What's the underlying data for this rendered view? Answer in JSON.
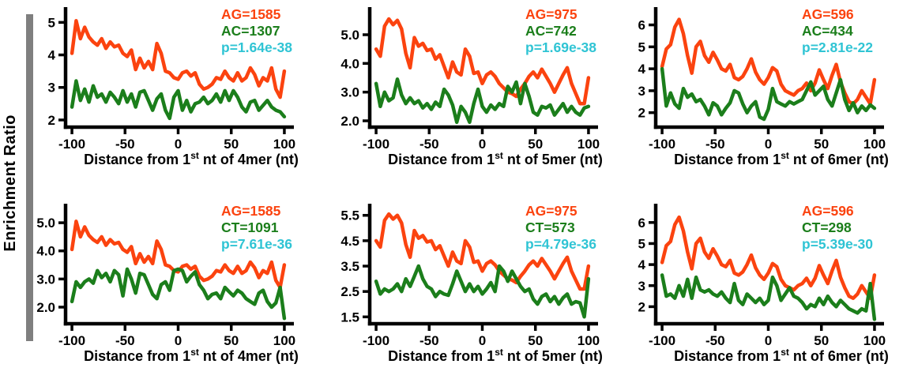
{
  "page": {
    "ylabel": "Enrichment Ratio",
    "background": "#ffffff"
  },
  "colors": {
    "ag_line": "#fb430f",
    "pair_line": "#1b7e1b",
    "pvalue_text": "#2fc4d4",
    "axis": "#000000",
    "side_bar": "#7f7f7f"
  },
  "chart_data": [
    {
      "type": "line",
      "xlabel": {
        "prefix": "Distance from 1",
        "sup": "st",
        "suffix": " nt of 4mer (nt)"
      },
      "xlim": [
        -106,
        106
      ],
      "ylim": [
        1.78,
        5.3
      ],
      "xticks": [
        -100,
        -50,
        0,
        50,
        100
      ],
      "yticks": [
        2,
        3,
        4,
        5
      ],
      "ytick_labels": [
        "2",
        "3",
        "4",
        "5"
      ],
      "legend": [
        {
          "text": "AG=1585",
          "color": "#fb430f"
        },
        {
          "text": "AC=1307",
          "color": "#1b7e1b"
        },
        {
          "text": "p=1.64e-38",
          "color": "#2fc4d4"
        }
      ],
      "x_start": -100,
      "x_step": 4,
      "series": [
        {
          "name": "AG",
          "color": "#fb430f",
          "values": [
            4.05,
            5.05,
            4.5,
            4.85,
            4.55,
            4.4,
            4.3,
            4.5,
            4.2,
            4.4,
            4.25,
            4.3,
            4.05,
            3.95,
            4.15,
            3.55,
            3.9,
            3.6,
            3.8,
            3.55,
            4.35,
            4.05,
            3.5,
            3.45,
            3.3,
            3.25,
            3.45,
            3.5,
            3.35,
            3.45,
            3.1,
            2.95,
            3.0,
            3.1,
            3.3,
            3.25,
            3.5,
            3.3,
            3.2,
            3.45,
            3.2,
            3.3,
            3.6,
            3.4,
            3.05,
            3.3,
            3.2,
            3.6,
            2.95,
            2.7,
            3.5
          ]
        },
        {
          "name": "AC",
          "color": "#1b7e1b",
          "values": [
            2.4,
            3.2,
            2.6,
            2.95,
            2.55,
            3.05,
            2.7,
            2.8,
            2.55,
            2.85,
            2.7,
            2.5,
            2.9,
            2.55,
            2.8,
            2.4,
            2.85,
            2.9,
            2.6,
            2.3,
            2.65,
            2.8,
            2.3,
            2.05,
            2.7,
            2.9,
            2.3,
            2.6,
            2.25,
            2.5,
            2.55,
            2.7,
            2.5,
            2.6,
            2.8,
            2.55,
            2.9,
            2.6,
            2.9,
            2.7,
            2.4,
            2.25,
            2.55,
            2.6,
            2.3,
            2.45,
            2.6,
            2.4,
            2.3,
            2.25,
            2.1
          ]
        }
      ]
    },
    {
      "type": "line",
      "xlabel": {
        "prefix": "Distance from 1",
        "sup": "st",
        "suffix": " nt of 5mer (nt)"
      },
      "xlim": [
        -106,
        106
      ],
      "ylim": [
        1.78,
        5.77
      ],
      "xticks": [
        -100,
        -50,
        0,
        50,
        100
      ],
      "yticks": [
        2,
        3,
        4,
        5
      ],
      "ytick_labels": [
        "2.0",
        "3.0",
        "4.0",
        "5.0"
      ],
      "legend": [
        {
          "text": "AG=975",
          "color": "#fb430f"
        },
        {
          "text": "AC=742",
          "color": "#1b7e1b"
        },
        {
          "text": "p=1.69e-38",
          "color": "#2fc4d4"
        }
      ],
      "x_start": -100,
      "x_step": 4,
      "series": [
        {
          "name": "AG",
          "color": "#fb430f",
          "values": [
            4.5,
            4.25,
            5.3,
            5.55,
            5.35,
            5.5,
            5.2,
            4.35,
            3.85,
            4.9,
            4.6,
            4.7,
            4.45,
            4.5,
            4.15,
            4.3,
            3.9,
            3.5,
            4.05,
            3.7,
            3.6,
            4.5,
            4.25,
            3.65,
            3.7,
            3.3,
            3.6,
            3.7,
            3.55,
            3.3,
            3.15,
            3.0,
            2.95,
            2.85,
            3.1,
            3.3,
            3.55,
            3.7,
            3.5,
            3.8,
            3.55,
            3.3,
            3.0,
            3.3,
            3.6,
            3.85,
            3.3,
            2.95,
            2.6,
            2.6,
            3.5
          ]
        },
        {
          "name": "AC",
          "color": "#1b7e1b",
          "values": [
            3.3,
            2.5,
            3.0,
            2.7,
            2.8,
            3.45,
            2.9,
            2.6,
            2.8,
            2.6,
            2.7,
            2.45,
            2.6,
            2.4,
            2.65,
            2.5,
            3.1,
            2.9,
            2.55,
            1.95,
            2.5,
            2.3,
            1.95,
            2.6,
            3.1,
            2.5,
            2.3,
            2.55,
            2.4,
            2.6,
            2.5,
            3.2,
            3.0,
            3.35,
            2.6,
            3.3,
            2.85,
            2.3,
            2.2,
            2.5,
            2.45,
            2.55,
            2.2,
            2.4,
            2.6,
            2.3,
            2.5,
            2.3,
            2.2,
            2.45,
            2.5
          ]
        }
      ]
    },
    {
      "type": "line",
      "xlabel": {
        "prefix": "Distance from 1",
        "sup": "st",
        "suffix": " nt of 6mer (nt)"
      },
      "xlim": [
        -106,
        106
      ],
      "ylim": [
        1.34,
        6.56
      ],
      "xticks": [
        -100,
        -50,
        0,
        50,
        100
      ],
      "yticks": [
        2,
        3,
        4,
        5,
        6
      ],
      "ytick_labels": [
        "2",
        "3",
        "4",
        "5",
        "6"
      ],
      "legend": [
        {
          "text": "AG=596",
          "color": "#fb430f"
        },
        {
          "text": "AC=434",
          "color": "#1b7e1b"
        },
        {
          "text": "p=2.81e-22",
          "color": "#2fc4d4"
        }
      ],
      "x_start": -100,
      "x_step": 4,
      "series": [
        {
          "name": "AG",
          "color": "#fb430f",
          "values": [
            4.1,
            4.9,
            5.1,
            5.9,
            6.25,
            5.6,
            4.6,
            3.8,
            5.0,
            5.25,
            4.6,
            4.3,
            4.75,
            4.4,
            4.0,
            3.9,
            4.2,
            3.6,
            3.5,
            3.65,
            4.0,
            4.45,
            3.85,
            3.5,
            3.3,
            3.6,
            4.05,
            3.9,
            3.3,
            3.0,
            2.9,
            2.8,
            3.0,
            3.1,
            3.35,
            3.0,
            3.35,
            3.95,
            3.5,
            3.1,
            3.7,
            4.2,
            3.4,
            2.9,
            2.5,
            2.4,
            2.6,
            3.0,
            2.7,
            2.4,
            3.5
          ]
        },
        {
          "name": "AC",
          "color": "#1b7e1b",
          "values": [
            4.0,
            2.3,
            2.9,
            2.4,
            2.2,
            3.1,
            2.7,
            2.85,
            2.5,
            2.6,
            2.3,
            1.9,
            2.45,
            2.3,
            1.9,
            2.2,
            2.45,
            3.0,
            2.9,
            2.4,
            2.0,
            2.3,
            2.5,
            1.8,
            1.7,
            2.15,
            3.1,
            2.5,
            2.4,
            2.3,
            2.5,
            2.4,
            2.5,
            2.6,
            3.0,
            3.4,
            2.8,
            3.0,
            3.2,
            2.6,
            2.3,
            2.9,
            3.5,
            2.6,
            2.1,
            2.45,
            2.0,
            2.3,
            2.1,
            2.35,
            2.2
          ]
        }
      ]
    },
    {
      "type": "line",
      "xlabel": {
        "prefix": "Distance from 1",
        "sup": "st",
        "suffix": " nt of 4mer (nt)"
      },
      "xlim": [
        -106,
        106
      ],
      "ylim": [
        1.41,
        5.48
      ],
      "xticks": [
        -100,
        -50,
        0,
        50,
        100
      ],
      "yticks": [
        2,
        3,
        4,
        5
      ],
      "ytick_labels": [
        "2.0",
        "3.0",
        "4.0",
        "5.0"
      ],
      "legend": [
        {
          "text": "AG=1585",
          "color": "#fb430f"
        },
        {
          "text": "CT=1091",
          "color": "#1b7e1b"
        },
        {
          "text": "p=7.61e-36",
          "color": "#2fc4d4"
        }
      ],
      "x_start": -100,
      "x_step": 4,
      "series": [
        {
          "name": "AG",
          "color": "#fb430f",
          "values": [
            4.05,
            5.05,
            4.5,
            4.85,
            4.55,
            4.4,
            4.3,
            4.5,
            4.2,
            4.4,
            4.25,
            4.3,
            4.05,
            3.95,
            4.15,
            3.55,
            3.9,
            3.6,
            3.8,
            3.55,
            4.35,
            4.05,
            3.5,
            3.45,
            3.3,
            3.25,
            3.45,
            3.5,
            3.35,
            3.45,
            3.1,
            2.95,
            3.0,
            3.1,
            3.3,
            3.25,
            3.5,
            3.3,
            3.2,
            3.45,
            3.2,
            3.3,
            3.6,
            3.4,
            3.05,
            3.3,
            3.2,
            3.6,
            2.95,
            2.7,
            3.5
          ]
        },
        {
          "name": "CT",
          "color": "#1b7e1b",
          "values": [
            2.2,
            2.9,
            2.7,
            2.9,
            3.0,
            2.85,
            3.3,
            3.05,
            3.2,
            2.9,
            3.3,
            3.15,
            2.4,
            3.35,
            3.0,
            2.5,
            3.2,
            3.15,
            2.8,
            2.45,
            2.3,
            2.8,
            2.9,
            2.6,
            3.3,
            3.35,
            3.3,
            2.9,
            3.1,
            3.25,
            2.8,
            2.6,
            2.3,
            2.45,
            2.5,
            2.3,
            2.7,
            2.55,
            2.4,
            2.6,
            2.5,
            2.3,
            2.2,
            2.1,
            2.5,
            2.6,
            2.2,
            2.0,
            2.15,
            2.7,
            1.6
          ]
        }
      ]
    },
    {
      "type": "line",
      "xlabel": {
        "prefix": "Distance from 1",
        "sup": "st",
        "suffix": " nt of 5mer (nt)"
      },
      "xlim": [
        -106,
        106
      ],
      "ylim": [
        1.23,
        5.74
      ],
      "xticks": [
        -100,
        -50,
        0,
        50,
        100
      ],
      "yticks": [
        1.5,
        2.5,
        3.5,
        4.5,
        5.5
      ],
      "ytick_labels": [
        "1.5",
        "2.5",
        "3.5",
        "4.5",
        "5.5"
      ],
      "legend": [
        {
          "text": "AG=975",
          "color": "#fb430f"
        },
        {
          "text": "CT=573",
          "color": "#1b7e1b"
        },
        {
          "text": "p=4.79e-36",
          "color": "#2fc4d4"
        }
      ],
      "x_start": -100,
      "x_step": 4,
      "series": [
        {
          "name": "AG",
          "color": "#fb430f",
          "values": [
            4.5,
            4.25,
            5.3,
            5.55,
            5.35,
            5.5,
            5.2,
            4.35,
            3.85,
            4.9,
            4.6,
            4.7,
            4.45,
            4.5,
            4.15,
            4.3,
            3.9,
            3.5,
            4.05,
            3.7,
            3.6,
            4.5,
            4.25,
            3.65,
            3.7,
            3.3,
            3.6,
            3.7,
            3.55,
            3.3,
            3.15,
            3.0,
            2.95,
            2.85,
            3.1,
            3.3,
            3.55,
            3.7,
            3.5,
            3.8,
            3.55,
            3.3,
            3.0,
            3.3,
            3.6,
            3.85,
            3.3,
            2.95,
            2.6,
            2.6,
            3.5
          ]
        },
        {
          "name": "CT",
          "color": "#1b7e1b",
          "values": [
            2.9,
            2.4,
            2.6,
            2.5,
            2.6,
            2.8,
            2.5,
            3.0,
            2.7,
            3.1,
            3.5,
            3.0,
            2.7,
            2.6,
            2.3,
            2.5,
            2.4,
            2.35,
            2.8,
            3.3,
            2.9,
            2.5,
            2.8,
            2.5,
            2.7,
            2.4,
            2.6,
            2.85,
            2.5,
            3.5,
            3.3,
            2.9,
            3.3,
            3.0,
            2.7,
            2.5,
            2.6,
            2.2,
            2.0,
            2.3,
            2.4,
            2.1,
            2.3,
            2.0,
            2.25,
            2.4,
            2.0,
            2.1,
            2.05,
            1.5,
            3.0
          ]
        }
      ]
    },
    {
      "type": "line",
      "xlabel": {
        "prefix": "Distance from 1",
        "sup": "st",
        "suffix": " nt of 6mer (nt)"
      },
      "xlim": [
        -106,
        106
      ],
      "ylim": [
        1.19,
        6.63
      ],
      "xticks": [
        -100,
        -50,
        0,
        50,
        100
      ],
      "yticks": [
        2,
        3,
        4,
        5,
        6
      ],
      "ytick_labels": [
        "2",
        "3",
        "4",
        "5",
        "6"
      ],
      "legend": [
        {
          "text": "AG=596",
          "color": "#fb430f"
        },
        {
          "text": "CT=298",
          "color": "#1b7e1b"
        },
        {
          "text": "p=5.39e-30",
          "color": "#2fc4d4"
        }
      ],
      "x_start": -100,
      "x_step": 4,
      "series": [
        {
          "name": "AG",
          "color": "#fb430f",
          "values": [
            4.1,
            4.9,
            5.1,
            5.9,
            6.25,
            5.6,
            4.6,
            3.8,
            5.0,
            5.25,
            4.6,
            4.3,
            4.75,
            4.4,
            4.0,
            3.9,
            4.2,
            3.6,
            3.5,
            3.65,
            4.0,
            4.45,
            3.85,
            3.5,
            3.3,
            3.6,
            4.05,
            3.9,
            3.3,
            3.0,
            2.9,
            2.8,
            3.0,
            3.1,
            3.35,
            3.0,
            3.35,
            3.95,
            3.5,
            3.1,
            3.7,
            4.2,
            3.4,
            2.9,
            2.5,
            2.4,
            2.6,
            3.0,
            2.7,
            2.4,
            3.5
          ]
        },
        {
          "name": "CT",
          "color": "#1b7e1b",
          "values": [
            3.5,
            2.5,
            2.6,
            2.4,
            3.0,
            2.5,
            3.3,
            2.4,
            3.4,
            2.8,
            2.7,
            2.8,
            2.6,
            2.5,
            2.7,
            2.4,
            2.2,
            3.1,
            2.3,
            2.1,
            2.6,
            2.4,
            2.2,
            2.4,
            2.1,
            2.3,
            3.4,
            3.0,
            2.3,
            2.6,
            2.9,
            2.5,
            2.4,
            2.2,
            1.9,
            2.1,
            2.0,
            2.4,
            2.1,
            2.5,
            2.2,
            2.0,
            2.3,
            2.1,
            1.9,
            1.8,
            1.7,
            1.9,
            1.8,
            3.1,
            1.4
          ]
        }
      ]
    }
  ]
}
